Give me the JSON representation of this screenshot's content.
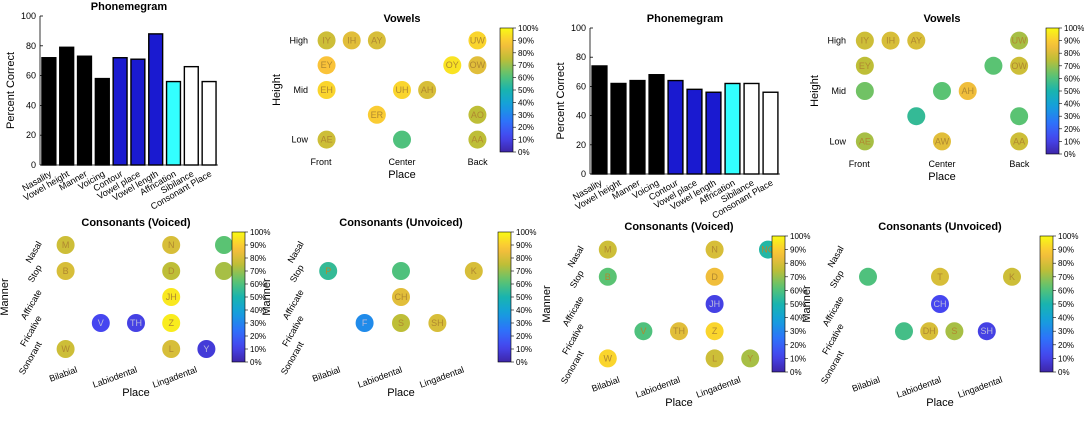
{
  "chart_data": [
    {
      "type": "bar",
      "title": "Phonemegram",
      "ylabel": "Percent Correct",
      "xlabel": "",
      "ylim": [
        0,
        100
      ],
      "yticks": [
        0,
        20,
        40,
        60,
        80,
        100
      ],
      "categories": [
        "Nasality",
        "Vowel height",
        "Manner",
        "Voicing",
        "Contour",
        "Vowel place",
        "Vowel length",
        "Affrication",
        "Sibilance",
        "Consonant Place"
      ],
      "values": [
        72,
        79,
        73,
        58,
        72,
        71,
        88,
        56,
        66,
        56
      ],
      "bar_colors": [
        "#000000",
        "#000000",
        "#000000",
        "#000000",
        "#1a1ad0",
        "#1a1ad0",
        "#1a1ad0",
        "#33ffff",
        "#ffffff",
        "#ffffff"
      ]
    },
    {
      "type": "scatter",
      "title": "Vowels",
      "xlabel": "Place",
      "ylabel": "Height",
      "x_ticks": [
        "Front",
        "Center",
        "Back"
      ],
      "y_ticks": [
        "High",
        "Mid",
        "Low"
      ],
      "colorbar_ticks": [
        "0%",
        "10%",
        "20%",
        "30%",
        "40%",
        "50%",
        "60%",
        "70%",
        "80%",
        "90%",
        "100%"
      ],
      "points": [
        {
          "label": "IY",
          "col": 0,
          "row": 0,
          "value": 78
        },
        {
          "label": "IH",
          "col": 1,
          "row": 0,
          "value": 82
        },
        {
          "label": "AY",
          "col": 2,
          "row": 0,
          "value": 80
        },
        {
          "label": "UW",
          "col": 6,
          "row": 0,
          "value": 92
        },
        {
          "label": "EY",
          "col": 0,
          "row": 1,
          "value": 88
        },
        {
          "label": "OY",
          "col": 5,
          "row": 1,
          "value": 95
        },
        {
          "label": "OW",
          "col": 6,
          "row": 1,
          "value": 82
        },
        {
          "label": "EH",
          "col": 0,
          "row": 2,
          "value": 92
        },
        {
          "label": "UH",
          "col": 3,
          "row": 2,
          "value": 92
        },
        {
          "label": "AH",
          "col": 4,
          "row": 2,
          "value": 80
        },
        {
          "label": "ER",
          "col": 2,
          "row": 3,
          "value": 90
        },
        {
          "label": "AO",
          "col": 6,
          "row": 3,
          "value": 75
        },
        {
          "label": "AE",
          "col": 0,
          "row": 4,
          "value": 78
        },
        {
          "label": "",
          "col": 3,
          "row": 4,
          "value": 60
        },
        {
          "label": "AA",
          "col": 6,
          "row": 4,
          "value": 75
        }
      ]
    },
    {
      "type": "scatter",
      "title": "Consonants (Voiced)",
      "xlabel": "Place",
      "ylabel": "Manner",
      "x_ticks": [
        "Bilabial",
        "Labiodental",
        "Lingadental"
      ],
      "y_ticks": [
        "Nasal",
        "Stop",
        "Affricate",
        "Fricative",
        "Sonorant"
      ],
      "colorbar_ticks": [
        "0%",
        "10%",
        "20%",
        "30%",
        "40%",
        "50%",
        "60%",
        "70%",
        "80%",
        "90%",
        "100%"
      ],
      "points": [
        {
          "label": "M",
          "col": 0,
          "row": 0,
          "value": 78
        },
        {
          "label": "N",
          "col": 3,
          "row": 0,
          "value": 80
        },
        {
          "label": "",
          "col": 4.5,
          "row": 0,
          "value": 62
        },
        {
          "label": "B",
          "col": 0,
          "row": 1,
          "value": 80
        },
        {
          "label": "D",
          "col": 3,
          "row": 1,
          "value": 75
        },
        {
          "label": "",
          "col": 4.5,
          "row": 1,
          "value": 72
        },
        {
          "label": "JH",
          "col": 3,
          "row": 2,
          "value": 96
        },
        {
          "label": "V",
          "col": 1,
          "row": 3,
          "value": 12
        },
        {
          "label": "TH",
          "col": 2,
          "row": 3,
          "value": 10
        },
        {
          "label": "Z",
          "col": 3,
          "row": 3,
          "value": 97
        },
        {
          "label": "W",
          "col": 0,
          "row": 4,
          "value": 78
        },
        {
          "label": "L",
          "col": 3,
          "row": 4,
          "value": 80
        },
        {
          "label": "Y",
          "col": 4,
          "row": 4,
          "value": 8
        }
      ]
    },
    {
      "type": "scatter",
      "title": "Consonants (Unvoiced)",
      "xlabel": "Place",
      "ylabel": "Manner",
      "x_ticks": [
        "Bilabial",
        "Labiodental",
        "Lingadental"
      ],
      "y_ticks": [
        "Nasal",
        "Stop",
        "Affricate",
        "Fricative",
        "Sonorant"
      ],
      "colorbar_ticks": [
        "0%",
        "10%",
        "20%",
        "30%",
        "40%",
        "50%",
        "60%",
        "70%",
        "80%",
        "90%",
        "100%"
      ],
      "points": [
        {
          "label": "P",
          "col": 0,
          "row": 1,
          "value": 55
        },
        {
          "label": "",
          "col": 2,
          "row": 1,
          "value": 60
        },
        {
          "label": "K",
          "col": 4,
          "row": 1,
          "value": 80
        },
        {
          "label": "CH",
          "col": 2,
          "row": 2,
          "value": 82
        },
        {
          "label": "F",
          "col": 1,
          "row": 3,
          "value": 32
        },
        {
          "label": "S",
          "col": 2,
          "row": 3,
          "value": 75
        },
        {
          "label": "SH",
          "col": 3,
          "row": 3,
          "value": 80
        }
      ]
    },
    {
      "type": "bar",
      "title": "Phonemegram",
      "ylabel": "Percent Correct",
      "xlabel": "",
      "ylim": [
        0,
        100
      ],
      "yticks": [
        0,
        20,
        40,
        60,
        80,
        100
      ],
      "categories": [
        "Nasality",
        "Vowel height",
        "Manner",
        "Voicing",
        "Contour",
        "Vowel place",
        "Vowel length",
        "Affrication",
        "Sibilance",
        "Consonant Place"
      ],
      "values": [
        74,
        62,
        64,
        68,
        64,
        58,
        56,
        62,
        62,
        56
      ],
      "bar_colors": [
        "#000000",
        "#000000",
        "#000000",
        "#000000",
        "#1a1ad0",
        "#1a1ad0",
        "#1a1ad0",
        "#33ffff",
        "#ffffff",
        "#ffffff"
      ]
    },
    {
      "type": "scatter",
      "title": "Vowels",
      "xlabel": "Place",
      "ylabel": "Height",
      "x_ticks": [
        "Front",
        "Center",
        "Back"
      ],
      "y_ticks": [
        "High",
        "Mid",
        "Low"
      ],
      "colorbar_ticks": [
        "0%",
        "10%",
        "20%",
        "30%",
        "40%",
        "50%",
        "60%",
        "70%",
        "80%",
        "90%",
        "100%"
      ],
      "points": [
        {
          "label": "IY",
          "col": 0,
          "row": 0,
          "value": 78
        },
        {
          "label": "IH",
          "col": 1,
          "row": 0,
          "value": 80
        },
        {
          "label": "AY",
          "col": 2,
          "row": 0,
          "value": 80
        },
        {
          "label": "UW",
          "col": 6,
          "row": 0,
          "value": 72
        },
        {
          "label": "EY",
          "col": 0,
          "row": 1,
          "value": 75
        },
        {
          "label": "",
          "col": 5,
          "row": 1,
          "value": 62
        },
        {
          "label": "OW",
          "col": 6,
          "row": 1,
          "value": 78
        },
        {
          "label": "",
          "col": 0,
          "row": 2,
          "value": 65
        },
        {
          "label": "",
          "col": 3,
          "row": 2,
          "value": 62
        },
        {
          "label": "AH",
          "col": 4,
          "row": 2,
          "value": 85
        },
        {
          "label": "",
          "col": 2,
          "row": 3,
          "value": 55
        },
        {
          "label": "",
          "col": 6,
          "row": 3,
          "value": 62
        },
        {
          "label": "AE",
          "col": 0,
          "row": 4,
          "value": 72
        },
        {
          "label": "AW",
          "col": 3,
          "row": 4,
          "value": 82
        },
        {
          "label": "AA",
          "col": 6,
          "row": 4,
          "value": 78
        }
      ]
    },
    {
      "type": "scatter",
      "title": "Consonants (Voiced)",
      "xlabel": "Place",
      "ylabel": "Manner",
      "x_ticks": [
        "Bilabial",
        "Labiodental",
        "Lingadental"
      ],
      "y_ticks": [
        "Nasal",
        "Stop",
        "Affricate",
        "Fricative",
        "Sonorant"
      ],
      "colorbar_ticks": [
        "0%",
        "10%",
        "20%",
        "30%",
        "40%",
        "50%",
        "60%",
        "70%",
        "80%",
        "90%",
        "100%"
      ],
      "points": [
        {
          "label": "M",
          "col": 0,
          "row": 0,
          "value": 78
        },
        {
          "label": "N",
          "col": 3,
          "row": 0,
          "value": 80
        },
        {
          "label": "NG",
          "col": 4.5,
          "row": 0,
          "value": 52
        },
        {
          "label": "B",
          "col": 0,
          "row": 1,
          "value": 62
        },
        {
          "label": "D",
          "col": 3,
          "row": 1,
          "value": 85
        },
        {
          "label": "JH",
          "col": 3,
          "row": 2,
          "value": 10
        },
        {
          "label": "V",
          "col": 1,
          "row": 3,
          "value": 60
        },
        {
          "label": "TH",
          "col": 2,
          "row": 3,
          "value": 82
        },
        {
          "label": "Z",
          "col": 3,
          "row": 3,
          "value": 92
        },
        {
          "label": "W",
          "col": 0,
          "row": 4,
          "value": 92
        },
        {
          "label": "L",
          "col": 3,
          "row": 4,
          "value": 78
        },
        {
          "label": "Y",
          "col": 4,
          "row": 4,
          "value": 72
        }
      ]
    },
    {
      "type": "scatter",
      "title": "Consonants (Unvoiced)",
      "xlabel": "Place",
      "ylabel": "Manner",
      "x_ticks": [
        "Bilabial",
        "Labiodental",
        "Lingadental"
      ],
      "y_ticks": [
        "Nasal",
        "Stop",
        "Affricate",
        "Fricative",
        "Sonorant"
      ],
      "colorbar_ticks": [
        "0%",
        "10%",
        "20%",
        "30%",
        "40%",
        "50%",
        "60%",
        "70%",
        "80%",
        "90%",
        "100%"
      ],
      "points": [
        {
          "label": "",
          "col": 0,
          "row": 1,
          "value": 60
        },
        {
          "label": "T",
          "col": 2,
          "row": 1,
          "value": 80
        },
        {
          "label": "K",
          "col": 4,
          "row": 1,
          "value": 78
        },
        {
          "label": "CH",
          "col": 2,
          "row": 2,
          "value": 12
        },
        {
          "label": "",
          "col": 1,
          "row": 3,
          "value": 58
        },
        {
          "label": "DH",
          "col": 1.7,
          "row": 3,
          "value": 80
        },
        {
          "label": "S",
          "col": 2.4,
          "row": 3,
          "value": 72
        },
        {
          "label": "SH",
          "col": 3.3,
          "row": 3,
          "value": 10
        }
      ]
    }
  ]
}
